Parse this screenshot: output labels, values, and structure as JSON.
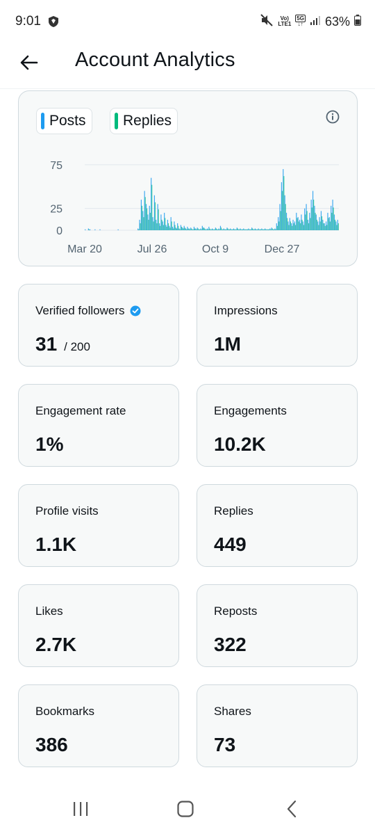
{
  "status_bar": {
    "time": "9:01",
    "network_top": "Vo)",
    "network_bottom": "LTE1",
    "network_5g": "5G",
    "battery": "63%"
  },
  "header": {
    "title": "Account Analytics"
  },
  "chart": {
    "legend": [
      {
        "label": "Posts",
        "color": "#1d9bf0"
      },
      {
        "label": "Replies",
        "color": "#00ba7c"
      }
    ]
  },
  "chart_data": {
    "type": "bar",
    "title": "",
    "xlabel": "",
    "ylabel": "",
    "ylim": [
      0,
      90
    ],
    "yticks": [
      "75",
      "25",
      "0"
    ],
    "xticks": [
      "Mar 20",
      "Jul 26",
      "Oct 9",
      "Dec 27"
    ],
    "legend_placement": "top-left",
    "grid": true,
    "series": [
      {
        "name": "Posts",
        "color": "#1d9bf0",
        "values": [
          1,
          0,
          2,
          1,
          0,
          0,
          1,
          0,
          0,
          1,
          0,
          0,
          0,
          0,
          0,
          0,
          0,
          0,
          0,
          0,
          1,
          0,
          0,
          0,
          0,
          0,
          0,
          0,
          0,
          0,
          0,
          0,
          2,
          12,
          35,
          22,
          45,
          30,
          18,
          28,
          60,
          15,
          40,
          12,
          30,
          8,
          18,
          10,
          20,
          6,
          12,
          5,
          15,
          4,
          10,
          3,
          8,
          2,
          6,
          3,
          5,
          2,
          4,
          2,
          3,
          1,
          4,
          2,
          3,
          1,
          2,
          5,
          3,
          1,
          2,
          4,
          1,
          2,
          1,
          3,
          1,
          2,
          5,
          1,
          2,
          1,
          3,
          1,
          2,
          1,
          2,
          1,
          3,
          1,
          2,
          1,
          2,
          1,
          1,
          2,
          1,
          3,
          1,
          2,
          1,
          2,
          1,
          2,
          1,
          2,
          1,
          1,
          2,
          3,
          1,
          2,
          8,
          15,
          30,
          55,
          70,
          40,
          20,
          10,
          14,
          8,
          12,
          10,
          20,
          15,
          12,
          18,
          10,
          25,
          30,
          12,
          20,
          35,
          45,
          28,
          18,
          10,
          15,
          22,
          12,
          8,
          10,
          20,
          15,
          28,
          35,
          18,
          10,
          12
        ]
      },
      {
        "name": "Replies",
        "color": "#00ba7c",
        "values": [
          0,
          0,
          1,
          0,
          0,
          0,
          0,
          0,
          0,
          0,
          0,
          0,
          0,
          0,
          0,
          0,
          0,
          0,
          0,
          0,
          0,
          0,
          0,
          0,
          0,
          0,
          0,
          0,
          0,
          0,
          0,
          0,
          1,
          8,
          28,
          15,
          38,
          25,
          12,
          20,
          52,
          10,
          32,
          8,
          24,
          5,
          12,
          6,
          14,
          4,
          8,
          3,
          10,
          2,
          6,
          2,
          5,
          1,
          4,
          2,
          3,
          1,
          2,
          1,
          2,
          1,
          2,
          1,
          2,
          1,
          1,
          3,
          2,
          1,
          1,
          2,
          1,
          1,
          1,
          2,
          1,
          1,
          3,
          1,
          1,
          1,
          2,
          1,
          1,
          1,
          1,
          1,
          2,
          1,
          1,
          1,
          1,
          1,
          1,
          1,
          1,
          2,
          1,
          1,
          1,
          1,
          1,
          1,
          1,
          1,
          1,
          1,
          1,
          2,
          1,
          1,
          5,
          10,
          22,
          45,
          62,
          30,
          14,
          6,
          10,
          5,
          8,
          6,
          14,
          10,
          8,
          12,
          6,
          18,
          22,
          8,
          14,
          26,
          35,
          20,
          12,
          6,
          10,
          16,
          8,
          5,
          6,
          14,
          10,
          20,
          26,
          12,
          6,
          8
        ]
      }
    ]
  },
  "stats": [
    {
      "label": "Verified followers",
      "value": "31",
      "sub": "/ 200",
      "verified": true
    },
    {
      "label": "Impressions",
      "value": "1M"
    },
    {
      "label": "Engagement rate",
      "value": "1%"
    },
    {
      "label": "Engagements",
      "value": "10.2K"
    },
    {
      "label": "Profile visits",
      "value": "1.1K"
    },
    {
      "label": "Replies",
      "value": "449"
    },
    {
      "label": "Likes",
      "value": "2.7K"
    },
    {
      "label": "Reposts",
      "value": "322"
    },
    {
      "label": "Bookmarks",
      "value": "386"
    },
    {
      "label": "Shares",
      "value": "73"
    }
  ]
}
